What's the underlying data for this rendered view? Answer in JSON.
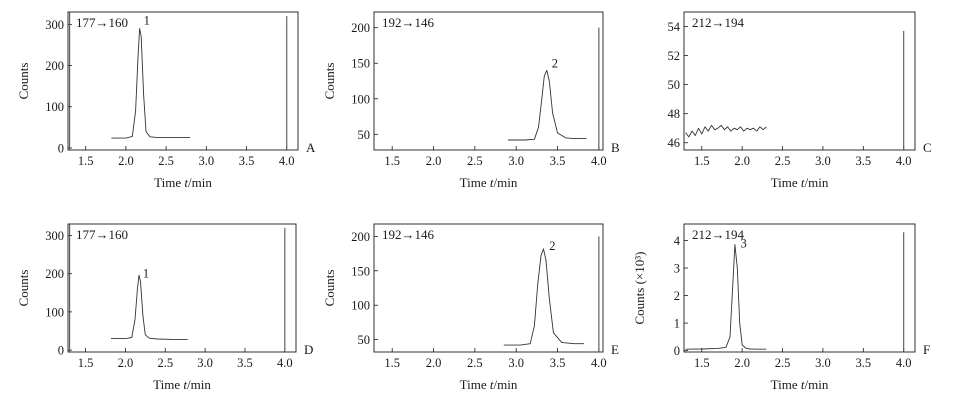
{
  "chart_data": [
    {
      "panel": "A",
      "type": "line",
      "title": "177→160",
      "xlabel": "Time t/min",
      "ylabel": "Counts",
      "xlim": [
        1.28,
        4.14
      ],
      "ylim": [
        -5,
        330
      ],
      "xticks": [
        1.5,
        2.0,
        2.5,
        3.0,
        3.5,
        4.0
      ],
      "xtick_labels": [
        "1.5",
        "2.0",
        "2.5",
        "3.0",
        "3.5",
        "4.0"
      ],
      "yticks": [
        0,
        100,
        200,
        300
      ],
      "ytick_labels": [
        "0",
        "100",
        "200",
        "300"
      ],
      "series": [
        {
          "x": [
            1.82,
            1.9,
            2.0,
            2.08,
            2.12,
            2.15,
            2.17,
            2.19,
            2.22,
            2.25,
            2.3,
            2.4,
            2.6,
            2.8
          ],
          "y": [
            24,
            24,
            24,
            28,
            90,
            220,
            290,
            270,
            130,
            40,
            27,
            25,
            25,
            25
          ]
        }
      ],
      "vlines": [
        {
          "x": 1.3,
          "from": -5,
          "to": 330
        },
        {
          "x": 4.0,
          "from": 0,
          "to": 320
        }
      ],
      "peaks": [
        {
          "label": "1",
          "x": 2.22,
          "y": 300
        }
      ]
    },
    {
      "panel": "B",
      "type": "line",
      "title": "192→146",
      "xlabel": "Time t/min",
      "ylabel": "Counts",
      "xlim": [
        1.28,
        4.05
      ],
      "ylim": [
        28,
        222
      ],
      "xticks": [
        1.5,
        2.0,
        2.5,
        3.0,
        3.5,
        4.0
      ],
      "xtick_labels": [
        "1.5",
        "2.0",
        "2.5",
        "3.0",
        "3.5",
        "4.0"
      ],
      "yticks": [
        50,
        100,
        150,
        200
      ],
      "ytick_labels": [
        "50",
        "100",
        "150",
        "200"
      ],
      "series": [
        {
          "x": [
            2.9,
            3.1,
            3.22,
            3.27,
            3.31,
            3.34,
            3.37,
            3.4,
            3.44,
            3.5,
            3.6,
            3.7,
            3.85
          ],
          "y": [
            42,
            42,
            43,
            60,
            100,
            132,
            140,
            125,
            80,
            52,
            45,
            44,
            44
          ]
        }
      ],
      "vlines": [
        {
          "x": 4.0,
          "from": 30,
          "to": 200
        }
      ],
      "peaks": [
        {
          "label": "2",
          "x": 3.43,
          "y": 144
        }
      ]
    },
    {
      "panel": "C",
      "type": "line",
      "title": "212→194",
      "xlabel": "Time t/min",
      "ylabel": "",
      "xlim": [
        1.28,
        4.14
      ],
      "ylim": [
        45.5,
        55
      ],
      "xticks": [
        1.5,
        2.0,
        2.5,
        3.0,
        3.5,
        4.0
      ],
      "xtick_labels": [
        "1.5",
        "2.0",
        "2.5",
        "3.0",
        "3.5",
        "4.0"
      ],
      "yticks": [
        46,
        48,
        50,
        52,
        54
      ],
      "ytick_labels": [
        "46",
        "48",
        "50",
        "52",
        "54"
      ],
      "series": [
        {
          "x": [
            1.3,
            1.34,
            1.38,
            1.42,
            1.46,
            1.5,
            1.54,
            1.58,
            1.62,
            1.66,
            1.7,
            1.74,
            1.78,
            1.82,
            1.86,
            1.9,
            1.94,
            1.98,
            2.02,
            2.06,
            2.1,
            2.14,
            2.18,
            2.22,
            2.26,
            2.3
          ],
          "y": [
            46.7,
            46.4,
            46.8,
            46.5,
            47.0,
            46.6,
            47.1,
            46.8,
            47.2,
            46.9,
            47.0,
            47.2,
            46.9,
            47.1,
            46.8,
            47.0,
            46.9,
            47.1,
            46.8,
            47.0,
            46.9,
            47.0,
            46.8,
            47.1,
            46.9,
            47.1
          ]
        }
      ],
      "vlines": [
        {
          "x": 4.0,
          "from": 45.5,
          "to": 53.7
        }
      ],
      "peaks": []
    },
    {
      "panel": "D",
      "type": "line",
      "title": "177→160",
      "xlabel": "Time t/min",
      "ylabel": "Counts",
      "xlim": [
        1.28,
        4.14
      ],
      "ylim": [
        -5,
        330
      ],
      "xticks": [
        1.5,
        2.0,
        2.5,
        3.0,
        3.5,
        4.0
      ],
      "xtick_labels": [
        "1.5",
        "2.0",
        "2.5",
        "3.0",
        "3.5",
        "4.0"
      ],
      "yticks": [
        0,
        100,
        200,
        300
      ],
      "ytick_labels": [
        "0",
        "100",
        "200",
        "300"
      ],
      "series": [
        {
          "x": [
            1.82,
            1.9,
            2.0,
            2.08,
            2.12,
            2.15,
            2.17,
            2.19,
            2.22,
            2.25,
            2.3,
            2.4,
            2.6,
            2.78
          ],
          "y": [
            30,
            30,
            30,
            33,
            80,
            160,
            196,
            180,
            90,
            40,
            31,
            29,
            28,
            28
          ]
        }
      ],
      "vlines": [
        {
          "x": 1.3,
          "from": -5,
          "to": 330
        },
        {
          "x": 4.0,
          "from": 0,
          "to": 320
        }
      ],
      "peaks": [
        {
          "label": "1",
          "x": 2.22,
          "y": 190
        }
      ]
    },
    {
      "panel": "E",
      "type": "line",
      "title": "192→146",
      "xlabel": "Time t/min",
      "ylabel": "Counts",
      "xlim": [
        1.28,
        4.05
      ],
      "ylim": [
        32,
        218
      ],
      "xticks": [
        1.5,
        2.0,
        2.5,
        3.0,
        3.5,
        4.0
      ],
      "xtick_labels": [
        "1.5",
        "2.0",
        "2.5",
        "3.0",
        "3.5",
        "4.0"
      ],
      "yticks": [
        50,
        100,
        150,
        200
      ],
      "ytick_labels": [
        "50",
        "100",
        "150",
        "200"
      ],
      "series": [
        {
          "x": [
            2.85,
            3.05,
            3.17,
            3.22,
            3.26,
            3.3,
            3.33,
            3.36,
            3.4,
            3.45,
            3.55,
            3.7,
            3.82
          ],
          "y": [
            42,
            42,
            44,
            70,
            130,
            172,
            182,
            165,
            110,
            60,
            46,
            44,
            44
          ]
        }
      ],
      "vlines": [
        {
          "x": 4.0,
          "from": 32,
          "to": 200
        }
      ],
      "peaks": [
        {
          "label": "2",
          "x": 3.4,
          "y": 180
        }
      ]
    },
    {
      "panel": "F",
      "type": "line",
      "title": "212→194",
      "xlabel": "Time t/min",
      "ylabel": "Counts (×10³)",
      "xlim": [
        1.28,
        4.14
      ],
      "ylim": [
        -0.05,
        4.6
      ],
      "xticks": [
        1.5,
        2.0,
        2.5,
        3.0,
        3.5,
        4.0
      ],
      "xtick_labels": [
        "1.5",
        "2.0",
        "2.5",
        "3.0",
        "3.5",
        "4.0"
      ],
      "yticks": [
        0,
        1,
        2,
        3,
        4
      ],
      "ytick_labels": [
        "0",
        "1",
        "2",
        "3",
        "4"
      ],
      "series": [
        {
          "x": [
            1.3,
            1.5,
            1.7,
            1.8,
            1.85,
            1.88,
            1.91,
            1.94,
            1.97,
            2.0,
            2.05,
            2.1,
            2.2,
            2.3
          ],
          "y": [
            0.05,
            0.06,
            0.08,
            0.12,
            0.5,
            2.2,
            3.85,
            3.0,
            1.0,
            0.2,
            0.08,
            0.06,
            0.05,
            0.05
          ]
        }
      ],
      "vlines": [
        {
          "x": 4.0,
          "from": 0,
          "to": 4.3
        }
      ],
      "peaks": [
        {
          "label": "3",
          "x": 1.98,
          "y": 3.75
        }
      ]
    }
  ]
}
